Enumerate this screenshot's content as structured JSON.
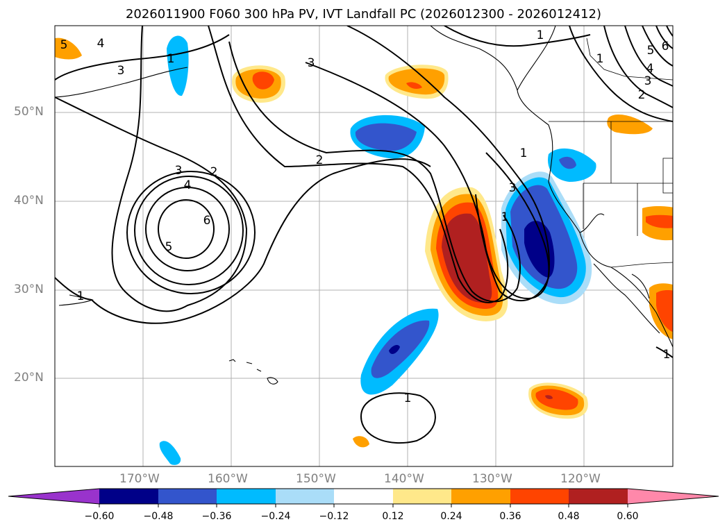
{
  "title": "2026011900 F060 300 hPa PV, IVT Landfall PC (2026012300 - 2026012412)",
  "lat_labels": [
    "50°N",
    "40°N",
    "30°N",
    "20°N"
  ],
  "lon_labels": [
    "170°W",
    "160°W",
    "150°W",
    "140°W",
    "130°W",
    "120°W"
  ],
  "contour_labels": [
    "5",
    "4",
    "3",
    "1",
    "3",
    "1",
    "2",
    "2",
    "3",
    "4",
    "6",
    "5",
    "1",
    "1",
    "1",
    "3",
    "1",
    "2",
    "3",
    "4",
    "5",
    "6",
    "1",
    "1"
  ],
  "colorbar": {
    "ticks": [
      "−0.60",
      "−0.48",
      "−0.36",
      "−0.24",
      "−0.12",
      "0.12",
      "0.24",
      "0.36",
      "0.48",
      "0.60"
    ],
    "colors": [
      "#9933cc",
      "#000088",
      "#3355cc",
      "#00bbff",
      "#aaddf8",
      "#ffffff",
      "#ffe88a",
      "#ffa000",
      "#ff4400",
      "#b02020",
      "#ff88aa"
    ]
  }
}
